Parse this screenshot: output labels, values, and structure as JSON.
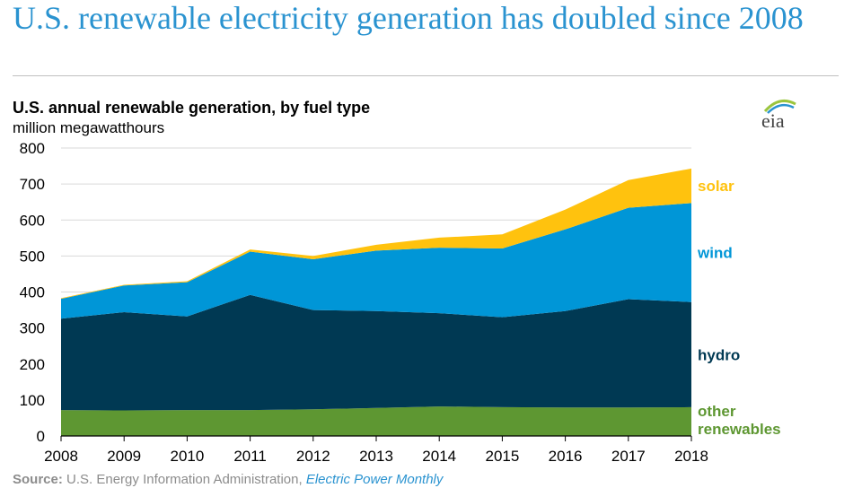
{
  "headline": "U.S. renewable electricity generation has doubled since 2008",
  "logo_text": "eia",
  "source": {
    "label": "Source:",
    "text": "U.S. Energy Information Administration,",
    "publication": "Electric Power Monthly"
  },
  "chart_data": {
    "type": "area",
    "stacked": true,
    "title": "U.S. annual renewable generation, by fuel type",
    "ylabel": "million megawatthours",
    "xlabel": "",
    "x": [
      2008,
      2009,
      2010,
      2011,
      2012,
      2013,
      2014,
      2015,
      2016,
      2017,
      2018
    ],
    "ylim": [
      0,
      800
    ],
    "yticks": [
      0,
      100,
      200,
      300,
      400,
      500,
      600,
      700,
      800
    ],
    "grid": true,
    "legend": "right-side labels",
    "series": [
      {
        "name": "other renewables",
        "color": "#5e9732",
        "values": [
          72,
          71,
          72,
          72,
          74,
          78,
          82,
          80,
          79,
          79,
          80
        ]
      },
      {
        "name": "hydro",
        "color": "#003953",
        "values": [
          254,
          273,
          260,
          320,
          276,
          269,
          259,
          250,
          268,
          301,
          292
        ]
      },
      {
        "name": "wind",
        "color": "#0096d7",
        "values": [
          55,
          74,
          95,
          120,
          141,
          168,
          182,
          191,
          227,
          254,
          275
        ]
      },
      {
        "name": "solar",
        "color": "#ffc20e",
        "values": [
          2,
          2,
          3,
          6,
          9,
          16,
          28,
          39,
          55,
          77,
          96
        ]
      }
    ]
  }
}
